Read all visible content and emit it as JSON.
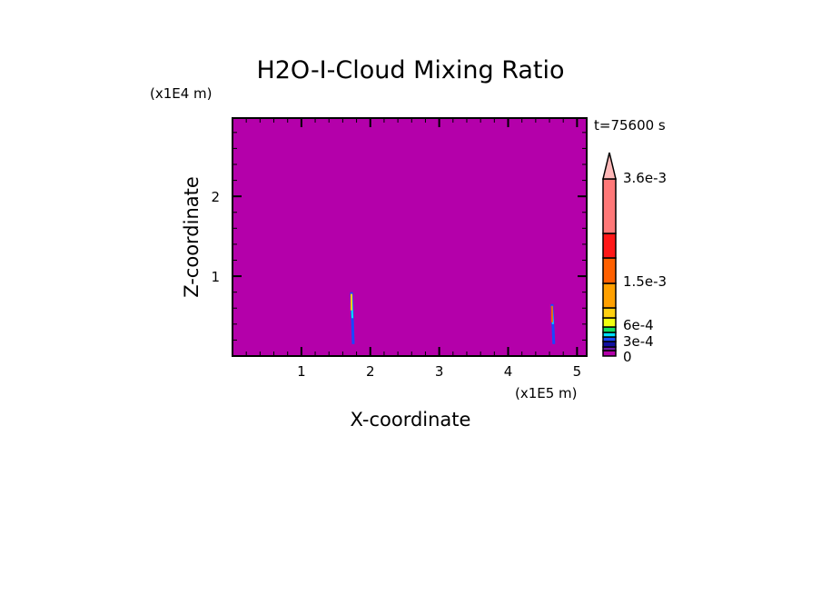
{
  "chart_data": {
    "type": "heatmap",
    "title": "H2O-I-Cloud Mixing Ratio",
    "xlabel": "X-coordinate",
    "ylabel": "Z-coordinate",
    "x_unit_label": "(x1E5 m)",
    "y_unit_label": "(x1E4 m)",
    "time_label": "t=75600 s",
    "xlim": [
      0,
      5.14
    ],
    "ylim": [
      0,
      2.98
    ],
    "xticks": [
      1,
      2,
      3,
      4,
      5
    ],
    "yticks": [
      1,
      2
    ],
    "background_color": "#b400aa",
    "colorbar": {
      "segments": [
        {
          "color": "#b400aa"
        },
        {
          "color": "#6a1aa8"
        },
        {
          "color": "#1010a0"
        },
        {
          "color": "#1848ff"
        },
        {
          "color": "#00e0ff"
        },
        {
          "color": "#10e060"
        },
        {
          "color": "#f0ff10"
        },
        {
          "color": "#ffd010"
        },
        {
          "color": "#ffa000"
        },
        {
          "color": "#ff6000"
        },
        {
          "color": "#ff1818"
        },
        {
          "color": "#ff7878"
        }
      ],
      "extend_color": "#ffb8b8",
      "labels": [
        "0",
        "3e-4",
        "6e-4",
        "1.5e-3",
        "3.6e-3"
      ]
    },
    "features": [
      {
        "x": 1.74,
        "z_range": [
          0.15,
          0.8
        ],
        "max_color": "#ffd010"
      },
      {
        "x": 4.65,
        "z_range": [
          0.15,
          0.65
        ],
        "max_color": "#ff6000"
      }
    ]
  }
}
